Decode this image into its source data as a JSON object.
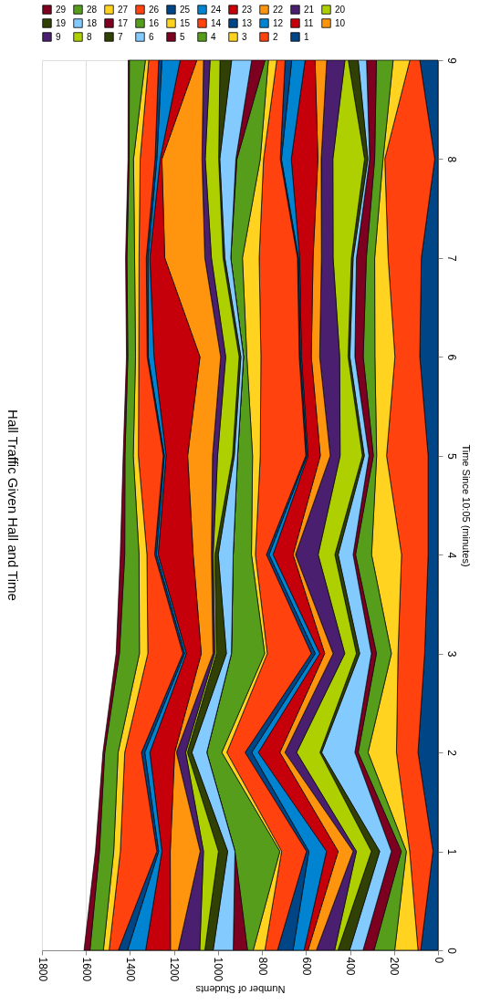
{
  "chart_data": {
    "type": "area",
    "title": "Hall Traffic Given Hall and Time",
    "xlabel": "Number of Students",
    "ylabel": "Time Since 10:05 (minutes)",
    "orientation": "horizontal",
    "stacked": true,
    "grid": "x",
    "legend": "top",
    "x": [
      0,
      1,
      2,
      3,
      4,
      5,
      6,
      7,
      8,
      9
    ],
    "xlim": [
      1800,
      0
    ],
    "xticks": [
      1800,
      1600,
      1400,
      1200,
      1000,
      800,
      600,
      400,
      200,
      0
    ],
    "ylim": [
      0,
      9
    ],
    "yticks": [
      0,
      1,
      2,
      3,
      4,
      5,
      6,
      7,
      8,
      9
    ],
    "series": [
      {
        "name": "1",
        "color": "#004586",
        "values": [
          79,
          23,
          91,
          61,
          45,
          45,
          83,
          76,
          15,
          83
        ]
      },
      {
        "name": "2",
        "color": "#ff420e",
        "values": [
          12,
          106,
          98,
          121,
          121,
          189,
          113,
          151,
          227,
          45
        ]
      },
      {
        "name": "3",
        "color": "#ffd320",
        "values": [
          106,
          15,
          129,
          30,
          136,
          45,
          91,
          61,
          8,
          76
        ]
      },
      {
        "name": "4",
        "color": "#579d1c",
        "values": [
          94,
          23,
          45,
          68,
          73,
          15,
          53,
          38,
          38,
          76
        ]
      },
      {
        "name": "5",
        "color": "#7e0021",
        "values": [
          50,
          45,
          15,
          23,
          11,
          20,
          38,
          45,
          23,
          45
        ]
      },
      {
        "name": "6",
        "color": "#83caff",
        "values": [
          61,
          53,
          151,
          53,
          68,
          21,
          23,
          15,
          8,
          38
        ]
      },
      {
        "name": "7",
        "color": "#314004",
        "values": [
          53,
          38,
          8,
          15,
          15,
          9,
          8,
          8,
          15,
          45
        ]
      },
      {
        "name": "8",
        "color": "#aecf00",
        "values": [
          15,
          68,
          106,
          53,
          76,
          101,
          38,
          83,
          144,
          15
        ]
      },
      {
        "name": "9",
        "color": "#4b1f6f",
        "values": [
          83,
          15,
          53,
          53,
          103,
          45,
          91,
          53,
          53,
          83
        ]
      },
      {
        "name": "10",
        "color": "#ff950e",
        "values": [
          38,
          68,
          23,
          38,
          11,
          45,
          38,
          38,
          15,
          53
        ]
      },
      {
        "name": "11",
        "color": "#c5000b",
        "values": [
          18,
          53,
          98,
          23,
          91,
          56,
          45,
          61,
          121,
          45
        ]
      },
      {
        "name": "12",
        "color": "#0084d1",
        "values": [
          50,
          80,
          30,
          20,
          18,
          5,
          5,
          5,
          45,
          61
        ]
      },
      {
        "name": "13",
        "color": "#004586",
        "values": [
          71,
          11,
          30,
          18,
          12,
          5,
          5,
          5,
          5,
          30
        ]
      },
      {
        "name": "14",
        "color": "#ff420e",
        "values": [
          57,
          113,
          83,
          200,
          50,
          207,
          174,
          174,
          76,
          38
        ]
      },
      {
        "name": "15",
        "color": "#ffd320",
        "values": [
          53,
          8,
          23,
          12,
          18,
          35,
          64,
          76,
          15,
          38
        ]
      },
      {
        "name": "16",
        "color": "#579d1c",
        "values": [
          26,
          204,
          68,
          151,
          83,
          68,
          15,
          53,
          106,
          15
        ]
      },
      {
        "name": "17",
        "color": "#7e0021",
        "values": [
          65,
          0,
          0,
          0,
          0,
          0,
          0,
          0,
          5,
          61
        ]
      },
      {
        "name": "18",
        "color": "#83caff",
        "values": [
          91,
          33,
          68,
          23,
          68,
          15,
          12,
          27,
          73,
          91
        ]
      },
      {
        "name": "19",
        "color": "#314004",
        "values": [
          38,
          42,
          20,
          45,
          15,
          8,
          8,
          8,
          5,
          53
        ]
      },
      {
        "name": "20",
        "color": "#aecf00",
        "values": [
          23,
          68,
          8,
          8,
          8,
          68,
          61,
          53,
          61,
          45
        ]
      },
      {
        "name": "21",
        "color": "#4b1f6f",
        "values": [
          98,
          15,
          42,
          8,
          8,
          23,
          23,
          30,
          15,
          30
        ]
      },
      {
        "name": "22",
        "color": "#ff950e",
        "values": [
          35,
          136,
          8,
          53,
          83,
          113,
          94,
          182,
          182,
          30
        ]
      },
      {
        "name": "23",
        "color": "#c5000b",
        "values": [
          113,
          38,
          113,
          68,
          159,
          98,
          209,
          68,
          8,
          76
        ]
      },
      {
        "name": "24",
        "color": "#0084d1",
        "values": [
          82,
          15,
          23,
          8,
          8,
          8,
          26,
          8,
          15,
          83
        ]
      },
      {
        "name": "25",
        "color": "#004586",
        "values": [
          42,
          8,
          15,
          8,
          8,
          5,
          5,
          8,
          8,
          15
        ]
      },
      {
        "name": "26",
        "color": "#ff420e",
        "values": [
          42,
          166,
          76,
          159,
          35,
          113,
          38,
          33,
          68,
          45
        ]
      },
      {
        "name": "27",
        "color": "#ffd320",
        "values": [
          26,
          30,
          30,
          38,
          36,
          23,
          15,
          20,
          30,
          15
        ]
      },
      {
        "name": "28",
        "color": "#579d1c",
        "values": [
          61,
          65,
          61,
          91,
          65,
          38,
          35,
          35,
          20,
          73
        ]
      },
      {
        "name": "29",
        "color": "#7e0021",
        "values": [
          27,
          18,
          8,
          15,
          20,
          8,
          6,
          6,
          5,
          5
        ]
      }
    ]
  }
}
